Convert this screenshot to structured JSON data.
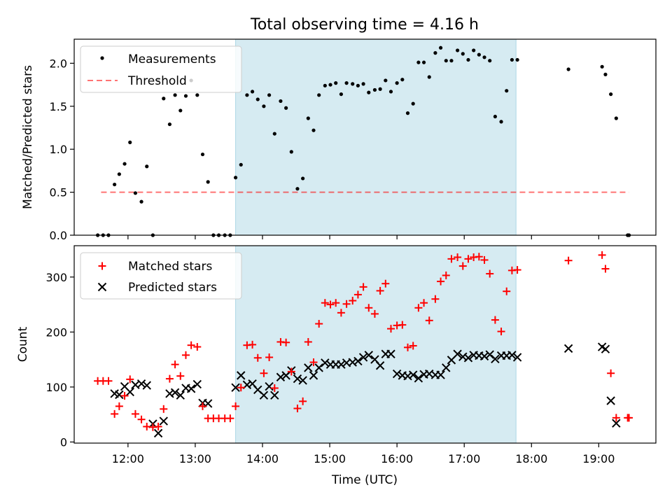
{
  "title": "Total observing time = 4.16 h",
  "colors": {
    "shade": "#add8e6",
    "measurement": "#000000",
    "threshold": "#ff0000",
    "matched": "#ff0000",
    "predicted": "#000000"
  },
  "chart_data": [
    {
      "type": "scatter",
      "panel": "top",
      "title": "Total observing time = 4.16 h",
      "xlabel": "",
      "ylabel": "Matched/Predicted stars",
      "ylim": [
        0,
        2.28
      ],
      "yticks": [
        0.0,
        0.5,
        1.0,
        1.5,
        2.0
      ],
      "ytick_labels": [
        "0.0",
        "0.5",
        "1.0",
        "1.5",
        "2.0"
      ],
      "xlim": [
        11.2,
        19.85
      ],
      "shaded_span": [
        13.6,
        17.77
      ],
      "legend": {
        "placement": "top-left",
        "entries": [
          {
            "label": "Measurements",
            "marker": "dot"
          },
          {
            "label": "Threshold",
            "marker": "dashed-line"
          }
        ]
      },
      "threshold": {
        "name": "Threshold",
        "x": [
          11.6,
          19.45
        ],
        "y": 0.5
      },
      "series": [
        {
          "name": "Measurements",
          "x": [
            11.55,
            11.63,
            11.71,
            11.8,
            11.87,
            11.95,
            12.03,
            12.11,
            12.2,
            12.28,
            12.37,
            12.45,
            12.53,
            12.62,
            12.7,
            12.78,
            12.86,
            12.94,
            13.03,
            13.11,
            13.19,
            13.27,
            13.35,
            13.44,
            13.52,
            13.6,
            13.68,
            13.77,
            13.85,
            13.93,
            14.02,
            14.1,
            14.18,
            14.27,
            14.35,
            14.43,
            14.52,
            14.6,
            14.68,
            14.76,
            14.84,
            14.93,
            15.01,
            15.09,
            15.17,
            15.25,
            15.34,
            15.42,
            15.5,
            15.58,
            15.67,
            15.75,
            15.83,
            15.91,
            16.0,
            16.08,
            16.16,
            16.24,
            16.32,
            16.4,
            16.48,
            16.57,
            16.65,
            16.73,
            16.81,
            16.9,
            16.98,
            17.06,
            17.14,
            17.22,
            17.3,
            17.38,
            17.46,
            17.55,
            17.63,
            17.71,
            17.79,
            18.55,
            19.05,
            19.1,
            19.18,
            19.26,
            19.43,
            19.45
          ],
          "y": [
            0.0,
            0.0,
            0.0,
            0.59,
            0.71,
            0.83,
            1.08,
            0.49,
            0.39,
            0.8,
            0.0,
            1.8,
            1.59,
            1.29,
            1.63,
            1.45,
            1.62,
            1.8,
            1.63,
            0.94,
            0.62,
            0.0,
            0.0,
            0.0,
            0.0,
            0.67,
            0.82,
            1.63,
            1.67,
            1.58,
            1.5,
            1.63,
            1.18,
            1.56,
            1.48,
            0.97,
            0.54,
            0.66,
            1.36,
            1.22,
            1.63,
            1.74,
            1.75,
            1.77,
            1.64,
            1.77,
            1.76,
            1.74,
            1.76,
            1.66,
            1.69,
            1.7,
            1.8,
            1.67,
            1.77,
            1.81,
            1.42,
            1.53,
            2.01,
            2.01,
            1.84,
            2.12,
            2.18,
            2.03,
            2.03,
            2.15,
            2.11,
            2.04,
            2.15,
            2.1,
            2.07,
            2.03,
            1.38,
            1.32,
            1.68,
            2.04,
            2.04,
            1.93,
            1.96,
            1.87,
            1.64,
            1.36,
            0.0,
            0.0
          ]
        }
      ]
    },
    {
      "type": "scatter",
      "panel": "bottom",
      "title": "",
      "xlabel": "Time (UTC)",
      "ylabel": "Count",
      "ylim": [
        -2,
        357
      ],
      "yticks": [
        0,
        100,
        200,
        300
      ],
      "ytick_labels": [
        "0",
        "100",
        "200",
        "300"
      ],
      "xlim": [
        11.2,
        19.85
      ],
      "xticks": [
        12,
        13,
        14,
        15,
        16,
        17,
        18,
        19
      ],
      "xtick_labels": [
        "12:00",
        "13:00",
        "14:00",
        "15:00",
        "16:00",
        "17:00",
        "18:00",
        "19:00"
      ],
      "shaded_span": [
        13.6,
        17.77
      ],
      "legend": {
        "placement": "top-left",
        "entries": [
          {
            "label": "Matched stars",
            "marker": "plus"
          },
          {
            "label": "Predicted stars",
            "marker": "cross"
          }
        ]
      },
      "series": [
        {
          "name": "Matched stars",
          "x": [
            11.55,
            11.63,
            11.71,
            11.8,
            11.87,
            11.95,
            12.03,
            12.11,
            12.2,
            12.28,
            12.37,
            12.45,
            12.53,
            12.62,
            12.7,
            12.78,
            12.86,
            12.94,
            13.03,
            13.11,
            13.19,
            13.27,
            13.35,
            13.44,
            13.52,
            13.6,
            13.68,
            13.77,
            13.85,
            13.93,
            14.02,
            14.1,
            14.18,
            14.27,
            14.35,
            14.43,
            14.52,
            14.6,
            14.68,
            14.76,
            14.84,
            14.93,
            15.01,
            15.09,
            15.17,
            15.25,
            15.34,
            15.42,
            15.5,
            15.58,
            15.67,
            15.75,
            15.83,
            15.91,
            16.0,
            16.08,
            16.16,
            16.24,
            16.32,
            16.4,
            16.48,
            16.57,
            16.65,
            16.73,
            16.81,
            16.9,
            16.98,
            17.06,
            17.14,
            17.22,
            17.3,
            17.38,
            17.46,
            17.55,
            17.63,
            17.71,
            17.79,
            18.55,
            19.05,
            19.1,
            19.18,
            19.26,
            19.43,
            19.45
          ],
          "y": [
            111,
            111,
            111,
            51,
            65,
            84,
            114,
            51,
            41,
            28,
            27,
            28,
            60,
            115,
            141,
            120,
            158,
            176,
            173,
            65,
            43,
            43,
            43,
            43,
            43,
            65,
            99,
            176,
            177,
            153,
            125,
            154,
            98,
            182,
            181,
            128,
            61,
            74,
            182,
            145,
            215,
            253,
            250,
            253,
            235,
            251,
            257,
            268,
            282,
            244,
            233,
            275,
            288,
            206,
            212,
            213,
            172,
            175,
            244,
            253,
            221,
            260,
            292,
            303,
            333,
            336,
            320,
            333,
            336,
            337,
            331,
            306,
            222,
            201,
            274,
            312,
            313,
            330,
            340,
            315,
            125,
            44,
            44,
            44
          ]
        },
        {
          "name": "Predicted stars",
          "x": [
            11.8,
            11.87,
            11.95,
            12.03,
            12.11,
            12.2,
            12.28,
            12.37,
            12.45,
            12.53,
            12.62,
            12.7,
            12.78,
            12.86,
            12.94,
            13.03,
            13.11,
            13.19,
            13.6,
            13.68,
            13.77,
            13.85,
            13.93,
            14.02,
            14.1,
            14.18,
            14.27,
            14.35,
            14.43,
            14.52,
            14.6,
            14.68,
            14.76,
            14.84,
            14.93,
            15.01,
            15.09,
            15.17,
            15.25,
            15.34,
            15.42,
            15.5,
            15.58,
            15.67,
            15.75,
            15.83,
            15.91,
            16.0,
            16.08,
            16.16,
            16.24,
            16.32,
            16.4,
            16.48,
            16.57,
            16.65,
            16.73,
            16.81,
            16.9,
            16.98,
            17.06,
            17.14,
            17.22,
            17.3,
            17.38,
            17.46,
            17.55,
            17.63,
            17.71,
            17.79,
            18.55,
            19.05,
            19.1,
            19.18,
            19.26
          ],
          "y": [
            88,
            86,
            101,
            91,
            104,
            106,
            103,
            33,
            16,
            38,
            88,
            90,
            85,
            98,
            97,
            105,
            71,
            70,
            99,
            121,
            104,
            106,
            95,
            85,
            101,
            85,
            118,
            121,
            130,
            115,
            112,
            135,
            121,
            135,
            144,
            141,
            141,
            141,
            144,
            145,
            147,
            154,
            158,
            150,
            139,
            160,
            160,
            124,
            121,
            120,
            122,
            116,
            123,
            124,
            122,
            122,
            135,
            149,
            160,
            155,
            153,
            158,
            157,
            156,
            159,
            151,
            157,
            157,
            158,
            154,
            170,
            173,
            169,
            75,
            34
          ]
        }
      ]
    }
  ]
}
